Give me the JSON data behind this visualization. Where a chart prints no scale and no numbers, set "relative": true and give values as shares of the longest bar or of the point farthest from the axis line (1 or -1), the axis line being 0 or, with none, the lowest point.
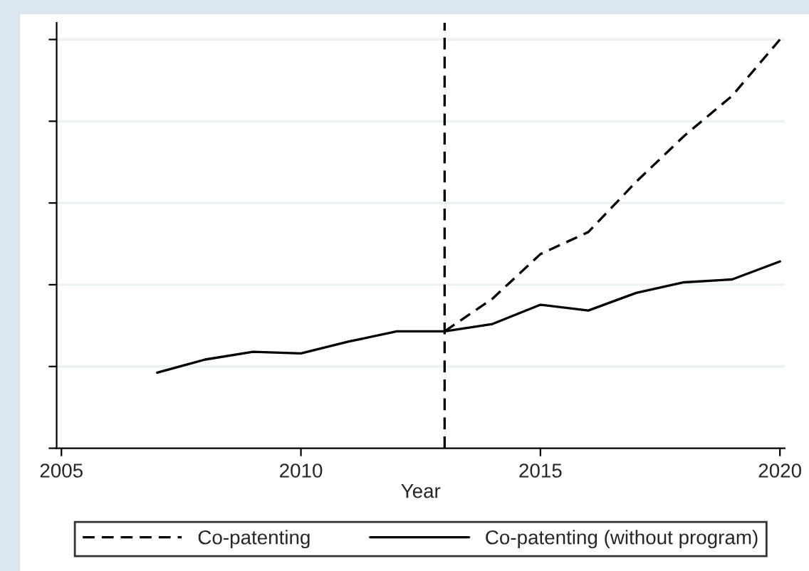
{
  "chart_data": {
    "type": "line",
    "xlabel": "Year",
    "relative": true,
    "xlim": [
      2004.9,
      2020.1
    ],
    "xticks": [
      2005,
      2010,
      2015,
      2020
    ],
    "series": [
      {
        "name": "Co-patenting",
        "color": "#000000",
        "line_style": "dashed",
        "x": [
          2013,
          2014,
          2015,
          2016,
          2017,
          2018,
          2019,
          2020
        ],
        "values": [
          0.286,
          0.366,
          0.475,
          0.529,
          0.652,
          0.764,
          0.862,
          1.0
        ]
      },
      {
        "name": "Co-patenting (without program)",
        "color": "#000000",
        "line_style": "solid",
        "x": [
          2007,
          2008,
          2009,
          2010,
          2011,
          2012,
          2013,
          2014,
          2015,
          2016,
          2017,
          2018,
          2019,
          2020
        ],
        "values": [
          0.185,
          0.217,
          0.236,
          0.232,
          0.261,
          0.286,
          0.286,
          0.304,
          0.351,
          0.337,
          0.38,
          0.406,
          0.413,
          0.457
        ]
      }
    ],
    "ref_lines": [
      {
        "axis": "x",
        "value": 2013,
        "color": "#000000",
        "line_style": "dashed"
      }
    ],
    "grid": "y",
    "legend": "bottom",
    "marker": "none"
  }
}
